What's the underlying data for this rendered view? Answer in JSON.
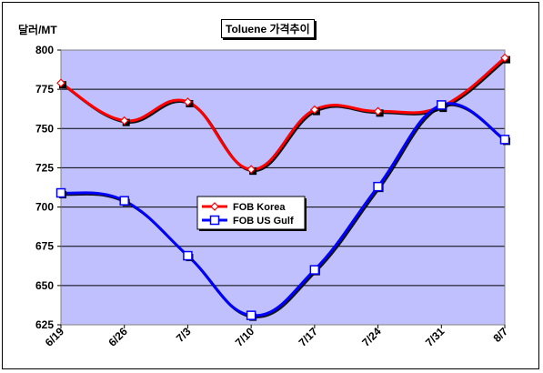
{
  "chart_data": {
    "type": "line",
    "title": "Toluene 가격추이",
    "ylabel": "달러/MT",
    "xlabel": "",
    "categories": [
      "6/19",
      "6/26",
      "7/3",
      "7/10",
      "7/17",
      "7/24",
      "7/31",
      "8/7"
    ],
    "ylim": [
      625,
      800
    ],
    "yticks": [
      625,
      650,
      675,
      700,
      725,
      750,
      775,
      800
    ],
    "grid": true,
    "legend": "center-left",
    "series": [
      {
        "name": "FOB Korea",
        "color": "#ff0000",
        "marker": "diamond",
        "values": [
          779,
          755,
          767,
          724,
          762,
          761,
          764,
          795
        ]
      },
      {
        "name": "FOB US Gulf",
        "color": "#0000ff",
        "marker": "square",
        "values": [
          709,
          704,
          669,
          631,
          660,
          713,
          765,
          743
        ]
      }
    ],
    "plot_bg": "#c0c0ff"
  }
}
